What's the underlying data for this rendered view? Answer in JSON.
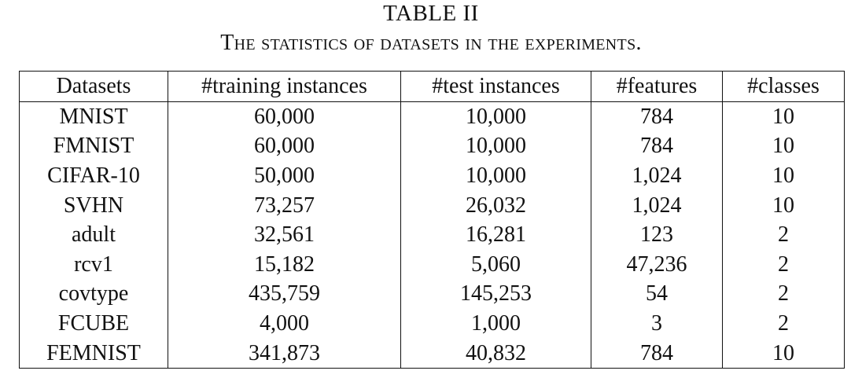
{
  "table": {
    "label": "TABLE II",
    "caption": "The statistics of datasets in the experiments.",
    "headers": [
      "Datasets",
      "#training instances",
      "#test instances",
      "#features",
      "#classes"
    ],
    "rows": [
      [
        "MNIST",
        "60,000",
        "10,000",
        "784",
        "10"
      ],
      [
        "FMNIST",
        "60,000",
        "10,000",
        "784",
        "10"
      ],
      [
        "CIFAR-10",
        "50,000",
        "10,000",
        "1,024",
        "10"
      ],
      [
        "SVHN",
        "73,257",
        "26,032",
        "1,024",
        "10"
      ],
      [
        "adult",
        "32,561",
        "16,281",
        "123",
        "2"
      ],
      [
        "rcv1",
        "15,182",
        "5,060",
        "47,236",
        "2"
      ],
      [
        "covtype",
        "435,759",
        "145,253",
        "54",
        "2"
      ],
      [
        "FCUBE",
        "4,000",
        "1,000",
        "3",
        "2"
      ],
      [
        "FEMNIST",
        "341,873",
        "40,832",
        "784",
        "10"
      ]
    ]
  }
}
